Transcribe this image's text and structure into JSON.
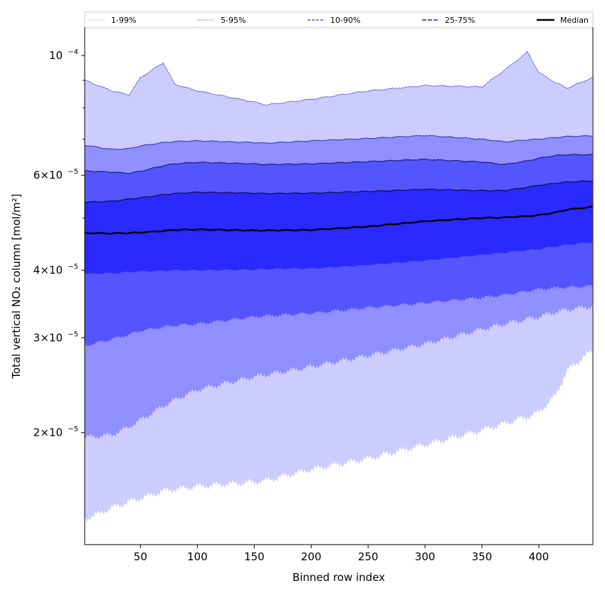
{
  "chart_data": {
    "type": "area",
    "title": "",
    "xlabel": "Binned row index",
    "ylabel": "Total vertical NO₂ column [mol/m²]",
    "xlim": [
      1,
      447.5
    ],
    "ylim": [
      1.24e-05,
      0.0001126
    ],
    "yscale": "log",
    "x_ticks": [
      50,
      100,
      150,
      200,
      250,
      300,
      350,
      400
    ],
    "x_tick_labels": [
      "50",
      "100",
      "150",
      "200",
      "250",
      "300",
      "350",
      "400"
    ],
    "y_ticks": [
      2e-05,
      3e-05,
      4e-05,
      6e-05,
      0.0001
    ],
    "y_tick_labels": [
      {
        "mant": "2",
        "exp": "−5"
      },
      {
        "mant": "3",
        "exp": "−5"
      },
      {
        "mant": "4",
        "exp": "−5"
      },
      {
        "mant": "6",
        "exp": "−5"
      },
      {
        "mant": "",
        "exp": "−4"
      }
    ],
    "legend_position": "top (above axes, horizontal)",
    "legend": [
      "1-99%",
      "5-95%",
      "10-90%",
      "25-75%",
      "Median"
    ],
    "x": [
      1,
      25,
      40,
      50,
      70,
      80,
      100,
      150,
      160,
      200,
      250,
      300,
      350,
      370,
      390,
      400,
      415,
      425,
      447
    ],
    "series": [
      {
        "name": "P1",
        "values": [
          1.38e-05,
          1.45e-05,
          1.49e-05,
          1.51e-05,
          1.56e-05,
          1.57e-05,
          1.59e-05,
          1.62e-05,
          1.63e-05,
          1.71e-05,
          1.79e-05,
          1.9e-05,
          2.02e-05,
          2.08e-05,
          2.14e-05,
          2.18e-05,
          2.35e-05,
          2.61e-05,
          2.84e-05
        ]
      },
      {
        "name": "P5",
        "values": [
          1.96e-05,
          1.98e-05,
          2.05e-05,
          2.11e-05,
          2.24e-05,
          2.3e-05,
          2.4e-05,
          2.54e-05,
          2.56e-05,
          2.65e-05,
          2.78e-05,
          2.92e-05,
          3.11e-05,
          3.18e-05,
          3.25e-05,
          3.28e-05,
          3.35e-05,
          3.38e-05,
          3.43e-05
        ]
      },
      {
        "name": "P10",
        "values": [
          2.9e-05,
          2.98e-05,
          3.04e-05,
          3.09e-05,
          3.14e-05,
          3.16e-05,
          3.18e-05,
          3.28e-05,
          3.29e-05,
          3.33e-05,
          3.41e-05,
          3.48e-05,
          3.56e-05,
          3.6e-05,
          3.66e-05,
          3.69e-05,
          3.71e-05,
          3.72e-05,
          3.74e-05
        ]
      },
      {
        "name": "P25",
        "values": [
          3.94e-05,
          3.95e-05,
          3.97e-05,
          3.98e-05,
          3.99e-05,
          4e-05,
          4e-05,
          4.01e-05,
          4.02e-05,
          4.03e-05,
          4.09e-05,
          4.17e-05,
          4.27e-05,
          4.31e-05,
          4.36e-05,
          4.38e-05,
          4.43e-05,
          4.46e-05,
          4.51e-05
        ]
      },
      {
        "name": "Median",
        "values": [
          4.69e-05,
          4.68e-05,
          4.69e-05,
          4.7e-05,
          4.73e-05,
          4.75e-05,
          4.76e-05,
          4.74e-05,
          4.74e-05,
          4.75e-05,
          4.82e-05,
          4.93e-05,
          5e-05,
          5.01e-05,
          5.04e-05,
          5.06e-05,
          5.12e-05,
          5.18e-05,
          5.24e-05
        ]
      },
      {
        "name": "P75",
        "values": [
          5.35e-05,
          5.37e-05,
          5.42e-05,
          5.45e-05,
          5.52e-05,
          5.55e-05,
          5.58e-05,
          5.56e-05,
          5.55e-05,
          5.56e-05,
          5.6e-05,
          5.65e-05,
          5.62e-05,
          5.62e-05,
          5.7e-05,
          5.75e-05,
          5.8e-05,
          5.83e-05,
          5.86e-05
        ]
      },
      {
        "name": "P90",
        "values": [
          6.11e-05,
          6.08e-05,
          6.05e-05,
          6.1e-05,
          6.25e-05,
          6.3e-05,
          6.34e-05,
          6.3e-05,
          6.28e-05,
          6.3e-05,
          6.36e-05,
          6.42e-05,
          6.35e-05,
          6.28e-05,
          6.38e-05,
          6.45e-05,
          6.53e-05,
          6.55e-05,
          6.55e-05
        ]
      },
      {
        "name": "P95",
        "values": [
          6.82e-05,
          6.7e-05,
          6.72e-05,
          6.8e-05,
          6.9e-05,
          6.93e-05,
          6.95e-05,
          6.9e-05,
          6.88e-05,
          6.95e-05,
          7.02e-05,
          7.11e-05,
          7e-05,
          6.92e-05,
          6.98e-05,
          7e-05,
          7.05e-05,
          7.08e-05,
          7.1e-05
        ]
      },
      {
        "name": "P99",
        "values": [
          9e-05,
          8.6e-05,
          8.45e-05,
          9.1e-05,
          9.7e-05,
          8.85e-05,
          8.6e-05,
          8.2e-05,
          8.1e-05,
          8.3e-05,
          8.6e-05,
          8.8e-05,
          8.75e-05,
          9.4e-05,
          0.0001015,
          9.3e-05,
          8.9e-05,
          8.7e-05,
          9.1e-05
        ]
      }
    ],
    "band_colors": {
      "1-99%": "#ccccff",
      "5-95%": "#8f8fff",
      "10-90%": "#5555ff",
      "25-75%": "#2a2aff"
    },
    "edge_color": "#00008b",
    "median_color": "#000000"
  }
}
